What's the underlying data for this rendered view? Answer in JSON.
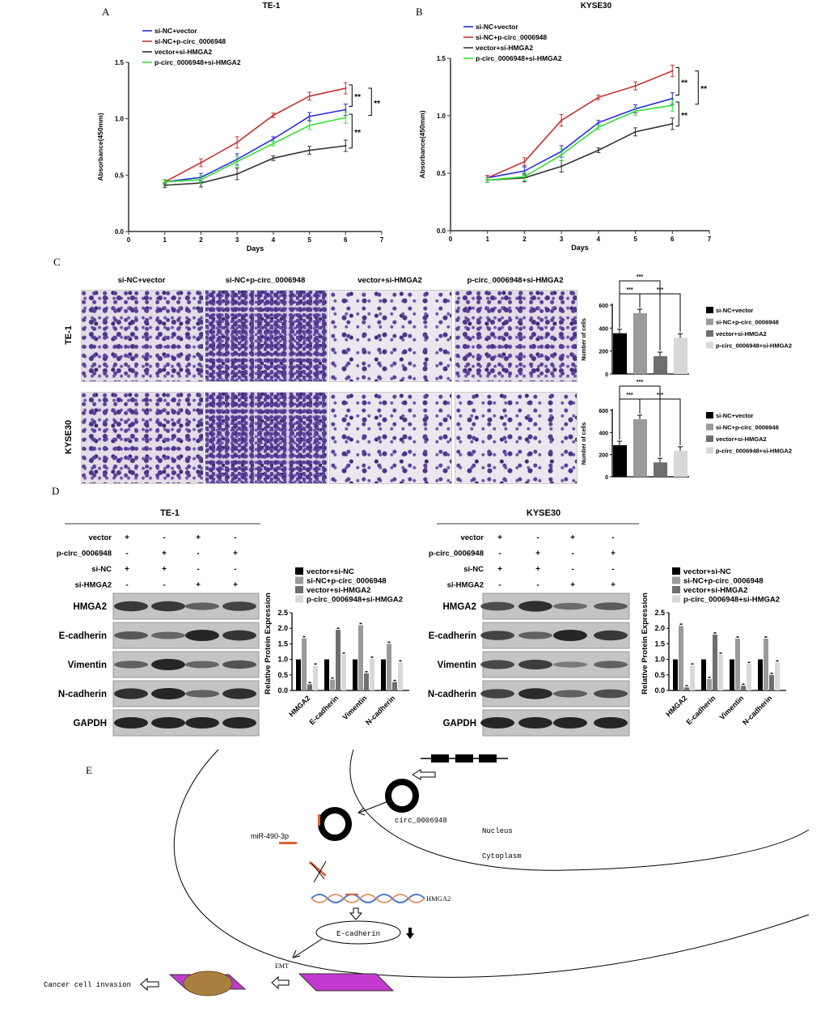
{
  "panel_labels": {
    "a": "A",
    "b": "B",
    "c": "C",
    "d": "D",
    "e": "E"
  },
  "chart_data": [
    {
      "id": "A",
      "type": "line",
      "title": "TE-1",
      "xlabel": "Days",
      "ylabel": "Absorbance(450mm)",
      "xlim": [
        0,
        7
      ],
      "ylim": [
        0,
        1.5
      ],
      "xticks": [
        "0",
        "1",
        "2",
        "3",
        "4",
        "5",
        "6",
        "7"
      ],
      "yticks": [
        "0.0",
        "0.5",
        "1.0",
        "1.5"
      ],
      "x": [
        1,
        2,
        3,
        4,
        5,
        6
      ],
      "legend": "top-left",
      "grid": false,
      "series": [
        {
          "name": "si-NC+vector",
          "color": "#2a2ae0",
          "values": [
            0.44,
            0.48,
            0.64,
            0.82,
            1.02,
            1.08
          ]
        },
        {
          "name": "si-NC+p-circ_0006948",
          "color": "#c83232",
          "values": [
            0.44,
            0.61,
            0.79,
            1.03,
            1.2,
            1.27
          ]
        },
        {
          "name": "vector+si-HMGA2",
          "color": "#333333",
          "values": [
            0.41,
            0.43,
            0.51,
            0.65,
            0.72,
            0.76
          ]
        },
        {
          "name": "p-circ_0006948+si-HMGA2",
          "color": "#33e033",
          "values": [
            0.44,
            0.46,
            0.62,
            0.78,
            0.94,
            1.01
          ]
        }
      ],
      "significance": [
        "**",
        "**",
        "**"
      ]
    },
    {
      "id": "B",
      "type": "line",
      "title": "KYSE30",
      "xlabel": "Days",
      "ylabel": "Absorbance(450mm)",
      "xlim": [
        0,
        7
      ],
      "ylim": [
        0,
        1.5
      ],
      "xticks": [
        "0",
        "1",
        "2",
        "3",
        "4",
        "5",
        "6",
        "7"
      ],
      "yticks": [
        "0.0",
        "0.5",
        "1.0",
        "1.5"
      ],
      "x": [
        1,
        2,
        3,
        4,
        5,
        6
      ],
      "legend": "top-left",
      "grid": false,
      "series": [
        {
          "name": "si-NC+vector",
          "color": "#2a2ae0",
          "values": [
            0.46,
            0.52,
            0.69,
            0.94,
            1.06,
            1.15
          ]
        },
        {
          "name": "si-NC+p-circ_0006948",
          "color": "#c83232",
          "values": [
            0.46,
            0.6,
            0.96,
            1.16,
            1.26,
            1.39
          ]
        },
        {
          "name": "vector+si-HMGA2",
          "color": "#333333",
          "values": [
            0.44,
            0.46,
            0.56,
            0.7,
            0.86,
            0.93
          ]
        },
        {
          "name": "p-circ_0006948+si-HMGA2",
          "color": "#33e033",
          "values": [
            0.44,
            0.47,
            0.66,
            0.9,
            1.04,
            1.09
          ]
        }
      ],
      "significance": [
        "**",
        "**",
        "**"
      ]
    },
    {
      "id": "C-TE-1",
      "type": "bar",
      "ylabel": "Number of cells",
      "ylim": [
        0,
        600
      ],
      "yticks": [
        "0",
        "200",
        "400",
        "600"
      ],
      "legend": "right",
      "categories": [
        "si-NC+vector",
        "si-NC+p-circ_0006948",
        "vector+si-HMGA2",
        "p-circ_0006948+si-HMGA2"
      ],
      "colors": [
        "#000000",
        "#9a9a9a",
        "#6e6e6e",
        "#d8d8d8"
      ],
      "values": [
        355,
        530,
        155,
        315
      ],
      "significance": [
        "***",
        "***",
        "***"
      ]
    },
    {
      "id": "C-KYSE30",
      "type": "bar",
      "ylabel": "Number of cells",
      "ylim": [
        0,
        600
      ],
      "yticks": [
        "0",
        "200",
        "400",
        "600"
      ],
      "legend": "right",
      "categories": [
        "si-NC+vector",
        "si-NC+p-circ_0006948",
        "vector+si-HMGA2",
        "p-circ_0006948+si-HMGA2"
      ],
      "colors": [
        "#000000",
        "#9a9a9a",
        "#6e6e6e",
        "#d8d8d8"
      ],
      "values": [
        285,
        520,
        130,
        235
      ],
      "significance": [
        "***",
        "***",
        "***"
      ]
    },
    {
      "id": "D-TE-1",
      "type": "bar",
      "ylabel": "Relative Protein Expression",
      "ylim": [
        0,
        2.5
      ],
      "yticks": [
        "0.0",
        "0.5",
        "1.0",
        "1.5",
        "2.0",
        "2.5"
      ],
      "legend": "top",
      "categories": [
        "HMGA2",
        "E-cadherin",
        "Vimentin",
        "N-cadherin"
      ],
      "colors": [
        "#000000",
        "#9a9a9a",
        "#6e6e6e",
        "#d8d8d8"
      ],
      "series": [
        {
          "name": "vector+si-NC",
          "values": [
            1,
            1,
            1,
            1
          ]
        },
        {
          "name": "si-NC+p-circ_0006948",
          "values": [
            1.68,
            0.35,
            2.1,
            1.5
          ]
        },
        {
          "name": "vector+si-HMGA2",
          "values": [
            0.2,
            1.95,
            0.55,
            0.27
          ]
        },
        {
          "name": "p-circ_0006948+si-HMGA2",
          "values": [
            0.8,
            1.15,
            1.02,
            0.9
          ]
        }
      ]
    },
    {
      "id": "D-KYSE30",
      "type": "bar",
      "ylabel": "Relative Protein Expression",
      "ylim": [
        0,
        2.5
      ],
      "yticks": [
        "0.0",
        "0.5",
        "1.0",
        "1.5",
        "2.0",
        "2.5"
      ],
      "legend": "top",
      "categories": [
        "HMGA2",
        "E-cadherin",
        "Vimentin",
        "N-cadherin"
      ],
      "colors": [
        "#000000",
        "#9a9a9a",
        "#6e6e6e",
        "#d8d8d8"
      ],
      "series": [
        {
          "name": "vector+si-NC",
          "values": [
            1,
            1,
            1,
            1
          ]
        },
        {
          "name": "si-NC+p-circ_0006948",
          "values": [
            2.08,
            0.37,
            1.67,
            1.67
          ]
        },
        {
          "name": "vector+si-HMGA2",
          "values": [
            0.1,
            1.8,
            0.15,
            0.5
          ]
        },
        {
          "name": "p-circ_0006948+si-HMGA2",
          "values": [
            0.8,
            1.15,
            0.85,
            0.9
          ]
        }
      ]
    }
  ],
  "transwell": {
    "columns": [
      "si-NC+vector",
      "si-NC+p-circ_0006948",
      "vector+si-HMGA2",
      "p-circ_0006948+si-HMGA2"
    ],
    "rows": [
      "TE-1",
      "KYSE30"
    ]
  },
  "western": [
    {
      "title": "TE-1",
      "conditions": [
        {
          "label": "vector",
          "signs": [
            "+",
            "-",
            "+",
            "-"
          ]
        },
        {
          "label": "p-circ_0006948",
          "signs": [
            "-",
            "+",
            "-",
            "+"
          ]
        },
        {
          "label": "si-NC",
          "signs": [
            "+",
            "+",
            "-",
            "-"
          ]
        },
        {
          "label": "si-HMGA2",
          "signs": [
            "-",
            "-",
            "+",
            "+"
          ]
        }
      ],
      "proteins": [
        "HMGA2",
        "E-cadherin",
        "Vimentin",
        "N-cadherin",
        "GAPDH"
      ]
    },
    {
      "title": "KYSE30",
      "conditions": [
        {
          "label": "vector",
          "signs": [
            "+",
            "-",
            "+",
            "-"
          ]
        },
        {
          "label": "p-circ_0006948",
          "signs": [
            "-",
            "+",
            "-",
            "+"
          ]
        },
        {
          "label": "si-NC",
          "signs": [
            "+",
            "+",
            "-",
            "-"
          ]
        },
        {
          "label": "si-HMGA2",
          "signs": [
            "-",
            "-",
            "+",
            "+"
          ]
        }
      ],
      "proteins": [
        "HMGA2",
        "E-cadherin",
        "Vimentin",
        "N-cadherin",
        "GAPDH"
      ]
    }
  ],
  "diagram": {
    "circ": "circ_0006948",
    "mir": "miR-490-3p",
    "nucleus": "Nucleus",
    "cytoplasm": "Cytoplasm",
    "hmga2": "HMGA2",
    "ecad": "E-cadherin",
    "emt": "EMT",
    "invasion": "Cancer cell invasion"
  }
}
